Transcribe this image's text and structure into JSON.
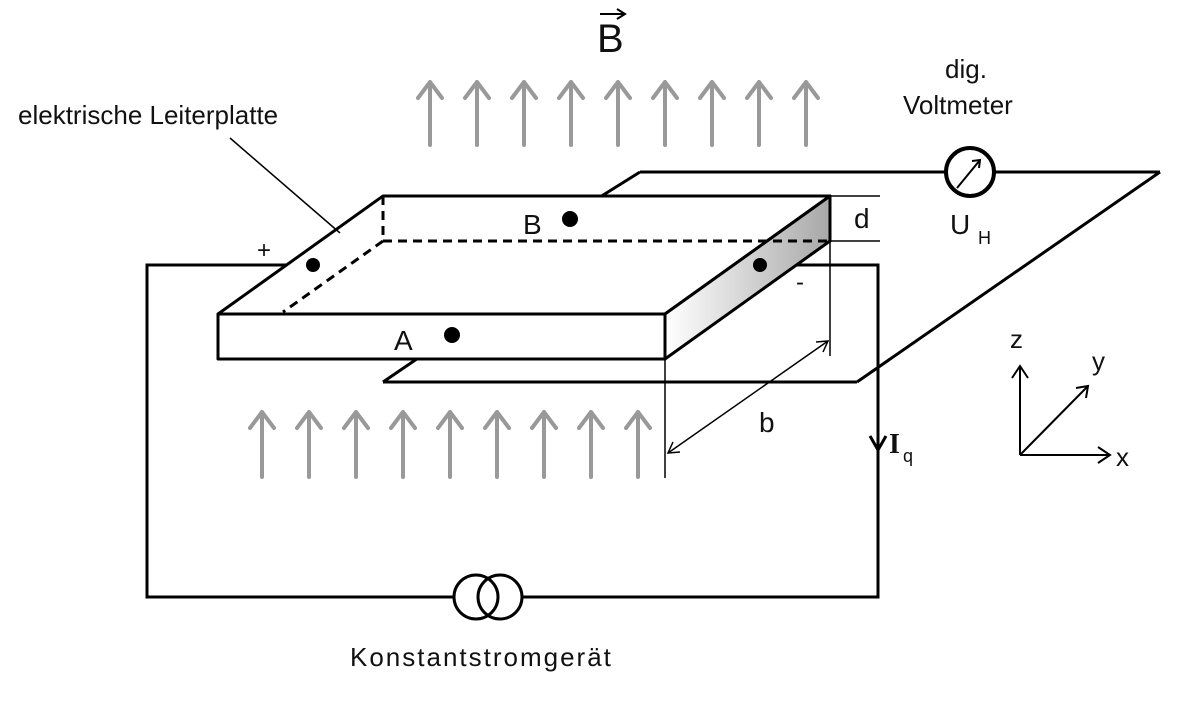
{
  "labels": {
    "field": "B",
    "board": "elektrische Leiterplatte",
    "voltmeter_line1": "dig.",
    "voltmeter_line2": "Voltmeter",
    "hall_voltage": "U",
    "hall_voltage_sub": "H",
    "thickness": "d",
    "width": "b",
    "contact_a": "A",
    "contact_b": "B",
    "plus": "+",
    "minus": "-",
    "current": "I",
    "current_sub": "q",
    "source": "Konstantstromgerät",
    "axis_z": "z",
    "axis_y": "y",
    "axis_x": "x"
  },
  "colors": {
    "line": "#000000",
    "field_arrow": "#999999"
  }
}
